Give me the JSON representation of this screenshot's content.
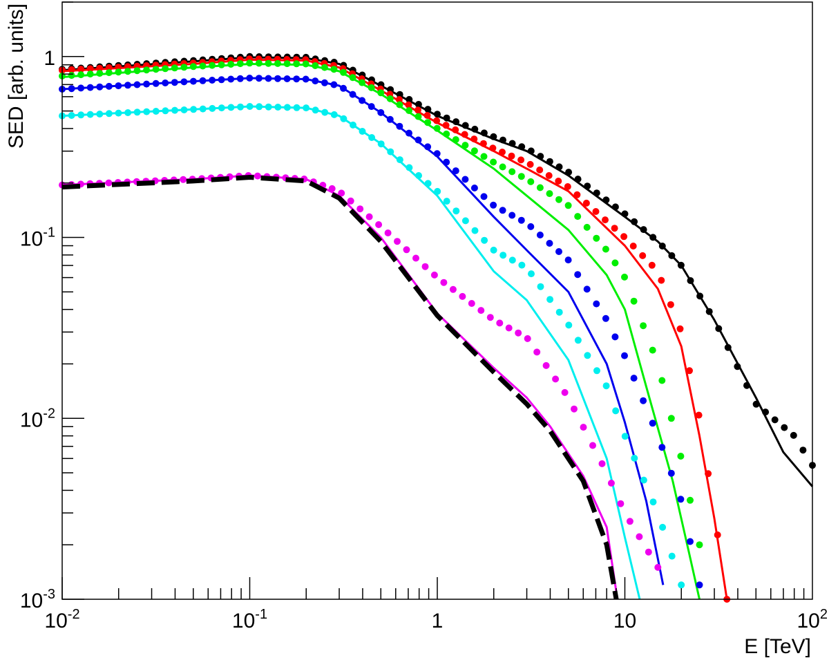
{
  "chart_data": {
    "type": "scatter",
    "title": "",
    "xlabel": "E [TeV]",
    "ylabel": "SED [arb. units]",
    "x_scale": "log",
    "y_scale": "log",
    "xlim": [
      0.01,
      100
    ],
    "ylim": [
      0.001,
      2
    ],
    "grid": false,
    "legend": "none",
    "x_tick_labels": [
      {
        "value": 0.01,
        "base": "10",
        "exp": "-2"
      },
      {
        "value": 0.1,
        "base": "10",
        "exp": "-1"
      },
      {
        "value": 1,
        "base": "1",
        "exp": ""
      },
      {
        "value": 10,
        "base": "10",
        "exp": ""
      },
      {
        "value": 100,
        "base": "10",
        "exp": "2"
      }
    ],
    "y_tick_labels": [
      {
        "value": 0.001,
        "base": "10",
        "exp": "-3"
      },
      {
        "value": 0.01,
        "base": "10",
        "exp": "-2"
      },
      {
        "value": 0.1,
        "base": "10",
        "exp": "-1"
      },
      {
        "value": 1,
        "base": "1",
        "exp": ""
      }
    ],
    "series": [
      {
        "color": "#000000",
        "points": [
          [
            0.01,
            0.85
          ],
          [
            0.05,
            0.95
          ],
          [
            0.1,
            1.0
          ],
          [
            0.2,
            0.99
          ],
          [
            0.3,
            0.92
          ],
          [
            0.5,
            0.7
          ],
          [
            1.0,
            0.48
          ],
          [
            2.0,
            0.36
          ],
          [
            3.0,
            0.31
          ],
          [
            5.0,
            0.23
          ],
          [
            10.0,
            0.135
          ],
          [
            15.0,
            0.095
          ],
          [
            20.0,
            0.07
          ],
          [
            30.0,
            0.035
          ],
          [
            50.0,
            0.012
          ],
          [
            80.0,
            0.008
          ],
          [
            100.0,
            0.0055
          ]
        ],
        "line": [
          [
            0.01,
            0.84
          ],
          [
            0.05,
            0.94
          ],
          [
            0.1,
            0.99
          ],
          [
            0.2,
            0.98
          ],
          [
            0.3,
            0.91
          ],
          [
            0.5,
            0.69
          ],
          [
            1.0,
            0.47
          ],
          [
            2.0,
            0.35
          ],
          [
            3.0,
            0.3
          ],
          [
            5.0,
            0.22
          ],
          [
            10.0,
            0.13
          ],
          [
            15.0,
            0.095
          ],
          [
            20.0,
            0.07
          ],
          [
            30.0,
            0.035
          ],
          [
            50.0,
            0.013
          ],
          [
            70.0,
            0.0065
          ],
          [
            100.0,
            0.0042
          ]
        ]
      },
      {
        "color": "#ff0000",
        "points": [
          [
            0.01,
            0.84
          ],
          [
            0.05,
            0.92
          ],
          [
            0.1,
            0.97
          ],
          [
            0.2,
            0.96
          ],
          [
            0.3,
            0.88
          ],
          [
            0.5,
            0.66
          ],
          [
            1.0,
            0.44
          ],
          [
            2.0,
            0.31
          ],
          [
            3.0,
            0.26
          ],
          [
            5.0,
            0.19
          ],
          [
            10.0,
            0.1
          ],
          [
            15.0,
            0.065
          ],
          [
            20.0,
            0.03
          ],
          [
            25.0,
            0.01
          ],
          [
            30.0,
            0.003
          ],
          [
            35.0,
            0.001
          ]
        ],
        "line": [
          [
            0.01,
            0.83
          ],
          [
            0.05,
            0.91
          ],
          [
            0.1,
            0.96
          ],
          [
            0.2,
            0.95
          ],
          [
            0.3,
            0.87
          ],
          [
            0.5,
            0.65
          ],
          [
            1.0,
            0.43
          ],
          [
            2.0,
            0.3
          ],
          [
            3.0,
            0.24
          ],
          [
            5.0,
            0.18
          ],
          [
            10.0,
            0.09
          ],
          [
            15.0,
            0.052
          ],
          [
            20.0,
            0.025
          ],
          [
            25.0,
            0.008
          ],
          [
            30.0,
            0.0028
          ],
          [
            35.0,
            0.001
          ]
        ]
      },
      {
        "color": "#00ee00",
        "points": [
          [
            0.01,
            0.78
          ],
          [
            0.05,
            0.88
          ],
          [
            0.1,
            0.92
          ],
          [
            0.2,
            0.91
          ],
          [
            0.3,
            0.84
          ],
          [
            0.5,
            0.63
          ],
          [
            1.0,
            0.4
          ],
          [
            2.0,
            0.26
          ],
          [
            3.0,
            0.21
          ],
          [
            5.0,
            0.15
          ],
          [
            8.0,
            0.085
          ],
          [
            10.0,
            0.06
          ],
          [
            15.0,
            0.02
          ],
          [
            20.0,
            0.006
          ],
          [
            25.0,
            0.002
          ]
        ],
        "line": [
          [
            0.01,
            0.77
          ],
          [
            0.05,
            0.87
          ],
          [
            0.1,
            0.91
          ],
          [
            0.2,
            0.9
          ],
          [
            0.3,
            0.83
          ],
          [
            0.5,
            0.62
          ],
          [
            1.0,
            0.39
          ],
          [
            2.0,
            0.24
          ],
          [
            3.0,
            0.17
          ],
          [
            5.0,
            0.11
          ],
          [
            8.0,
            0.062
          ],
          [
            10.0,
            0.04
          ],
          [
            13.0,
            0.015
          ],
          [
            18.0,
            0.0045
          ],
          [
            22.0,
            0.0018
          ],
          [
            25.0,
            0.001
          ]
        ]
      },
      {
        "color": "#0000ee",
        "points": [
          [
            0.01,
            0.66
          ],
          [
            0.05,
            0.73
          ],
          [
            0.1,
            0.76
          ],
          [
            0.2,
            0.75
          ],
          [
            0.3,
            0.69
          ],
          [
            0.5,
            0.49
          ],
          [
            1.0,
            0.29
          ],
          [
            2.0,
            0.15
          ],
          [
            3.0,
            0.12
          ],
          [
            5.0,
            0.075
          ],
          [
            8.0,
            0.035
          ],
          [
            10.0,
            0.022
          ],
          [
            15.0,
            0.008
          ],
          [
            20.0,
            0.0035
          ],
          [
            25.0,
            0.0012
          ]
        ],
        "line": [
          [
            0.01,
            0.66
          ],
          [
            0.05,
            0.73
          ],
          [
            0.1,
            0.76
          ],
          [
            0.2,
            0.75
          ],
          [
            0.3,
            0.69
          ],
          [
            0.5,
            0.49
          ],
          [
            1.0,
            0.28
          ],
          [
            2.0,
            0.13
          ],
          [
            3.0,
            0.085
          ],
          [
            5.0,
            0.05
          ],
          [
            8.0,
            0.02
          ],
          [
            10.0,
            0.0095
          ],
          [
            13.0,
            0.0035
          ],
          [
            16.0,
            0.0012
          ]
        ]
      },
      {
        "color": "#00eeee",
        "points": [
          [
            0.01,
            0.47
          ],
          [
            0.05,
            0.51
          ],
          [
            0.1,
            0.53
          ],
          [
            0.2,
            0.52
          ],
          [
            0.3,
            0.47
          ],
          [
            0.5,
            0.33
          ],
          [
            1.0,
            0.18
          ],
          [
            2.0,
            0.085
          ],
          [
            3.0,
            0.068
          ],
          [
            5.0,
            0.033
          ],
          [
            8.0,
            0.015
          ],
          [
            10.0,
            0.008
          ],
          [
            15.0,
            0.003
          ],
          [
            20.0,
            0.0012
          ]
        ],
        "line": [
          [
            0.01,
            0.47
          ],
          [
            0.05,
            0.51
          ],
          [
            0.1,
            0.53
          ],
          [
            0.2,
            0.52
          ],
          [
            0.3,
            0.47
          ],
          [
            0.5,
            0.33
          ],
          [
            1.0,
            0.17
          ],
          [
            2.0,
            0.065
          ],
          [
            3.0,
            0.045
          ],
          [
            5.0,
            0.021
          ],
          [
            8.0,
            0.006
          ],
          [
            10.0,
            0.0022
          ],
          [
            12.0,
            0.001
          ]
        ]
      },
      {
        "color": "#ee00ee",
        "points": [
          [
            0.01,
            0.195
          ],
          [
            0.05,
            0.21
          ],
          [
            0.1,
            0.22
          ],
          [
            0.2,
            0.21
          ],
          [
            0.3,
            0.18
          ],
          [
            0.5,
            0.115
          ],
          [
            1.0,
            0.06
          ],
          [
            2.0,
            0.035
          ],
          [
            3.0,
            0.028
          ],
          [
            5.0,
            0.013
          ],
          [
            8.0,
            0.005
          ],
          [
            10.0,
            0.003
          ],
          [
            15.0,
            0.0015
          ]
        ],
        "line": [
          [
            0.01,
            0.195
          ],
          [
            0.05,
            0.21
          ],
          [
            0.1,
            0.22
          ],
          [
            0.2,
            0.21
          ],
          [
            0.3,
            0.17
          ],
          [
            0.5,
            0.1
          ],
          [
            1.0,
            0.038
          ],
          [
            2.0,
            0.019
          ],
          [
            3.0,
            0.013
          ],
          [
            4.0,
            0.009
          ],
          [
            6.0,
            0.0048
          ],
          [
            8.0,
            0.0025
          ],
          [
            9.0,
            0.0011
          ]
        ]
      },
      {
        "color": "#000000",
        "dashed": true,
        "line": [
          [
            0.01,
            0.19
          ],
          [
            0.05,
            0.205
          ],
          [
            0.1,
            0.215
          ],
          [
            0.2,
            0.205
          ],
          [
            0.3,
            0.165
          ],
          [
            0.5,
            0.095
          ],
          [
            1.0,
            0.037
          ],
          [
            2.0,
            0.018
          ],
          [
            3.0,
            0.012
          ],
          [
            4.0,
            0.0085
          ],
          [
            6.0,
            0.0045
          ],
          [
            8.0,
            0.002
          ],
          [
            9.0,
            0.001
          ]
        ]
      }
    ]
  }
}
